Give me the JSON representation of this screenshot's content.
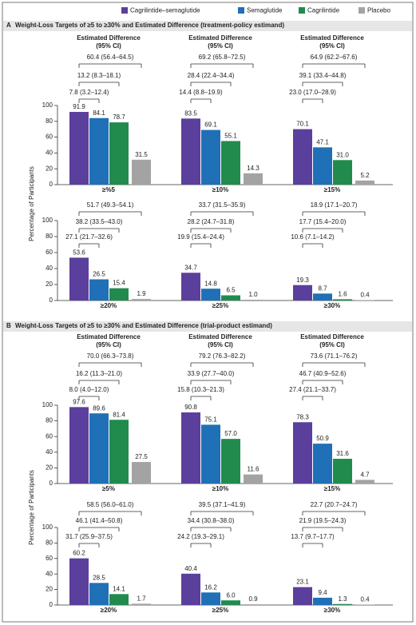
{
  "chart_data": [
    {
      "type": "bar",
      "panel": "A",
      "title": "Weight-Loss Targets of ≥5 to ≥30% and Estimated Difference (treatment-policy estimand)",
      "y_label": "Percentage of Participants",
      "difference_header": "Estimated Difference",
      "ci_header": "(95% CI)",
      "categories": [
        "≥%5",
        "≥10%",
        "≥15%",
        "≥20%",
        "≥25%",
        "≥30%"
      ],
      "series": [
        {
          "name": "Cagrilintide–semaglutide",
          "color": "#5b3f9c",
          "values": [
            91.9,
            83.5,
            70.1,
            53.6,
            34.7,
            19.3
          ],
          "value_labels": [
            "91.9",
            "83.5",
            "70.1",
            "53.6",
            "34.7",
            "19.3"
          ]
        },
        {
          "name": "Semaglutide",
          "color": "#1f70b6",
          "values": [
            84.1,
            69.1,
            47.1,
            26.5,
            14.8,
            8.7
          ],
          "value_labels": [
            "84.1",
            "69.1",
            "47.1",
            "26.5",
            "14.8",
            "8.7"
          ]
        },
        {
          "name": "Cagrilintide",
          "color": "#218b4e",
          "values": [
            78.7,
            55.1,
            31.0,
            15.4,
            6.5,
            1.6
          ],
          "value_labels": [
            "78.7",
            "55.1",
            "31.0",
            "15.4",
            "6.5",
            "1.6"
          ]
        },
        {
          "name": "Placebo",
          "color": "#a3a3a3",
          "values": [
            31.5,
            14.3,
            5.2,
            1.9,
            1.0,
            0.4
          ],
          "value_labels": [
            "31.5",
            "14.3",
            "5.2",
            "1.9",
            "1.0",
            "0.4"
          ]
        }
      ],
      "differences": [
        [
          "60.4 (56.4–64.5)",
          "13.2 (8.3–18.1)",
          "7.8 (3.2–12.4)"
        ],
        [
          "69.2 (65.8–72.5)",
          "28.4 (22.4–34.4)",
          "14.4 (8.8–19.9)"
        ],
        [
          "64.9 (62.2–67.6)",
          "39.1 (33.4–44.8)",
          "23.0 (17.0–28.9)"
        ],
        [
          "51.7 (49.3–54.1)",
          "38.2 (33.5–43.0)",
          "27.1 (21.7–32.6)"
        ],
        [
          "33.7 (31.5–35.9)",
          "28.2 (24.7–31.8)",
          "19.9 (15.4–24.4)"
        ],
        [
          "18.9 (17.1–20.7)",
          "17.7 (15.4–20.0)",
          "10.6 (7.1–14.2)"
        ]
      ],
      "ylim": [
        0,
        100
      ],
      "yticks": [
        0,
        20,
        40,
        60,
        80,
        100
      ]
    },
    {
      "type": "bar",
      "panel": "B",
      "title": "Weight-Loss Targets of ≥5 to ≥30% and Estimated Difference (trial-product estimand)",
      "y_label": "Percentage of Participants",
      "difference_header": "Estimated Difference",
      "ci_header": "(95% CI)",
      "categories": [
        "≥5%",
        "≥10%",
        "≥15%",
        "≥20%",
        "≥25%",
        "≥30%"
      ],
      "series": [
        {
          "color": "#5b3f9c",
          "values": [
            97.6,
            90.8,
            78.3,
            60.2,
            40.4,
            23.1
          ],
          "value_labels": [
            "97.6",
            "90.8",
            "78.3",
            "60.2",
            "40.4",
            "23.1"
          ]
        },
        {
          "color": "#1f70b6",
          "values": [
            89.6,
            75.1,
            50.9,
            28.5,
            16.2,
            9.4
          ],
          "value_labels": [
            "89.6",
            "75.1",
            "50.9",
            "28.5",
            "16.2",
            "9.4"
          ]
        },
        {
          "color": "#218b4e",
          "values": [
            81.4,
            57.0,
            31.6,
            14.1,
            6.0,
            1.3
          ],
          "value_labels": [
            "81.4",
            "57.0",
            "31.6",
            "14.1",
            "6.0",
            "1.3"
          ]
        },
        {
          "color": "#a3a3a3",
          "values": [
            27.5,
            11.6,
            4.7,
            1.7,
            0.9,
            0.4
          ],
          "value_labels": [
            "27.5",
            "11.6",
            "4.7",
            "1.7",
            "0.9",
            "0.4"
          ]
        }
      ],
      "differences": [
        [
          "70.0 (66.3–73.8)",
          "16.2 (11.3–21.0)",
          "8.0 (4.0–12.0)"
        ],
        [
          "79.2 (76.3–82.2)",
          "33.9 (27.7–40.0)",
          "15.8 (10.3–21.3)"
        ],
        [
          "73.6 (71.1–76.2)",
          "46.7 (40.9–52.6)",
          "27.4 (21.1–33.7)"
        ],
        [
          "58.5 (56.0–61.0)",
          "46.1 (41.4–50.8)",
          "31.7 (25.9–37.5)"
        ],
        [
          "39.5 (37.1–41.9)",
          "34.4 (30.8–38.0)",
          "24.2 (19.3–29.1)"
        ],
        [
          "22.7 (20.7–24.7)",
          "21.9 (19.5–24.3)",
          "13.7 (9.7–17.7)"
        ]
      ],
      "ylim": [
        0,
        100
      ],
      "yticks": [
        0,
        20,
        40,
        60,
        80,
        100
      ]
    }
  ]
}
